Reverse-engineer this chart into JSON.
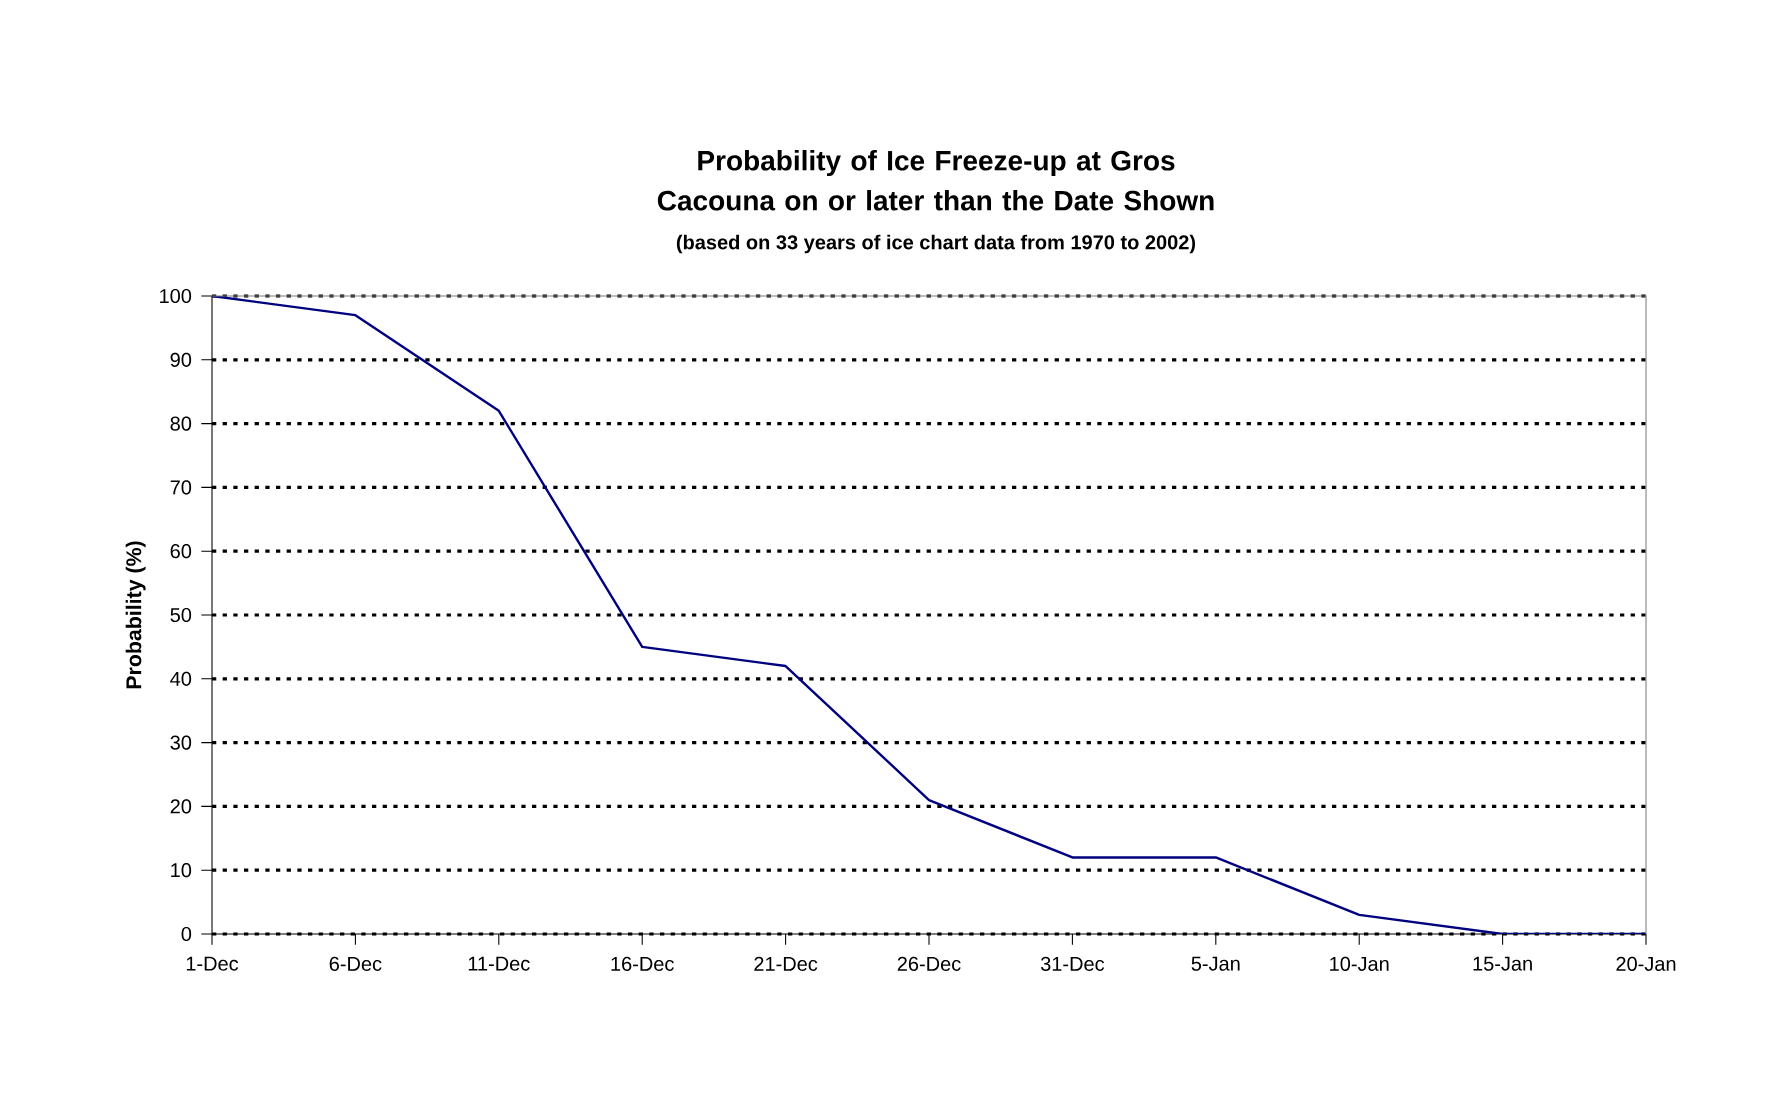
{
  "chart_data": {
    "type": "line",
    "title": "Probability of Ice Freeze-up at Gros Cacouna on or later than the Date Shown",
    "subtitle": "(based on 33 years of ice chart data from 1970 to 2002)",
    "ylabel": "Probability (%)",
    "categories": [
      "1-Dec",
      "6-Dec",
      "11-Dec",
      "16-Dec",
      "21-Dec",
      "26-Dec",
      "31-Dec",
      "5-Jan",
      "10-Jan",
      "15-Jan",
      "20-Jan"
    ],
    "series": [
      {
        "color": "#000080",
        "values": [
          100,
          97,
          82,
          45,
          42,
          21,
          12,
          12,
          3,
          0,
          0
        ]
      }
    ],
    "ylim": [
      0,
      100
    ],
    "yticks": [
      0,
      10,
      20,
      30,
      40,
      50,
      60,
      70,
      80,
      90,
      100
    ],
    "grid": "y",
    "marker": "none",
    "line_style": "solid"
  }
}
